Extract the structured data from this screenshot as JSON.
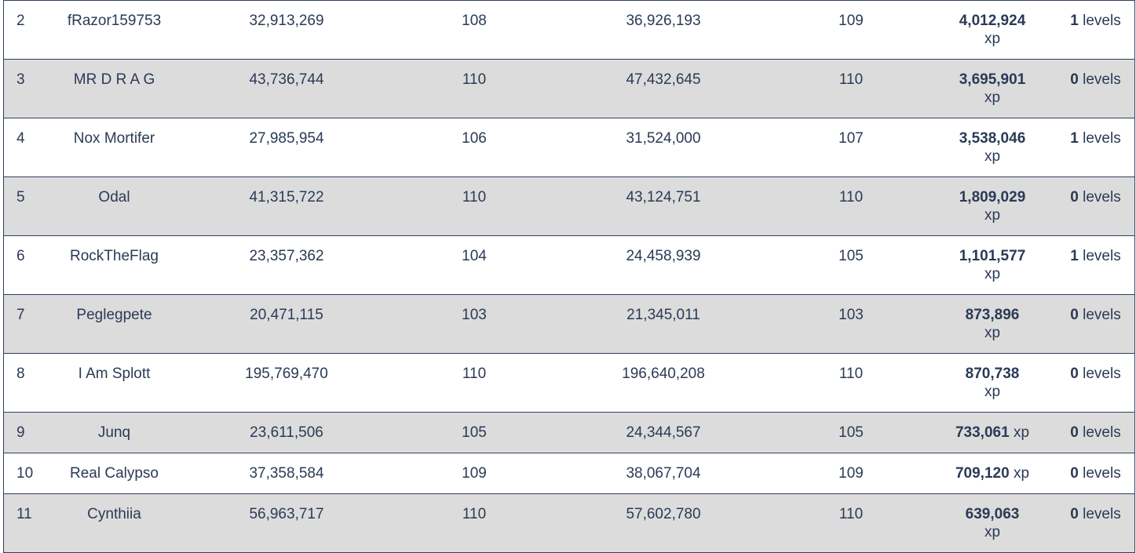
{
  "leaderboard": {
    "rows": [
      {
        "rank": "2",
        "name": "fRazor159753",
        "xp_start": "32,913,269",
        "level_start": "108",
        "xp_end": "36,926,193",
        "level_end": "109",
        "xp_gain": "4,012,924",
        "xp_unit": "xp",
        "level_gain": "1",
        "level_unit": "levels",
        "wrap": true
      },
      {
        "rank": "3",
        "name": "MR D R A G",
        "xp_start": "43,736,744",
        "level_start": "110",
        "xp_end": "47,432,645",
        "level_end": "110",
        "xp_gain": "3,695,901",
        "xp_unit": "xp",
        "level_gain": "0",
        "level_unit": "levels",
        "wrap": true
      },
      {
        "rank": "4",
        "name": "Nox Mortifer",
        "xp_start": "27,985,954",
        "level_start": "106",
        "xp_end": "31,524,000",
        "level_end": "107",
        "xp_gain": "3,538,046",
        "xp_unit": "xp",
        "level_gain": "1",
        "level_unit": "levels",
        "wrap": true
      },
      {
        "rank": "5",
        "name": "Odal",
        "xp_start": "41,315,722",
        "level_start": "110",
        "xp_end": "43,124,751",
        "level_end": "110",
        "xp_gain": "1,809,029",
        "xp_unit": "xp",
        "level_gain": "0",
        "level_unit": "levels",
        "wrap": true
      },
      {
        "rank": "6",
        "name": "RockTheFlag",
        "xp_start": "23,357,362",
        "level_start": "104",
        "xp_end": "24,458,939",
        "level_end": "105",
        "xp_gain": "1,101,577",
        "xp_unit": "xp",
        "level_gain": "1",
        "level_unit": "levels",
        "wrap": true
      },
      {
        "rank": "7",
        "name": "Peglegpete",
        "xp_start": "20,471,115",
        "level_start": "103",
        "xp_end": "21,345,011",
        "level_end": "103",
        "xp_gain": "873,896",
        "xp_unit": "xp",
        "level_gain": "0",
        "level_unit": "levels",
        "wrap": true
      },
      {
        "rank": "8",
        "name": "I Am Splott",
        "xp_start": "195,769,470",
        "level_start": "110",
        "xp_end": "196,640,208",
        "level_end": "110",
        "xp_gain": "870,738",
        "xp_unit": "xp",
        "level_gain": "0",
        "level_unit": "levels",
        "wrap": true
      },
      {
        "rank": "9",
        "name": "Junq",
        "xp_start": "23,611,506",
        "level_start": "105",
        "xp_end": "24,344,567",
        "level_end": "105",
        "xp_gain": "733,061",
        "xp_unit": "xp",
        "level_gain": "0",
        "level_unit": "levels",
        "wrap": false
      },
      {
        "rank": "10",
        "name": "Real Calypso",
        "xp_start": "37,358,584",
        "level_start": "109",
        "xp_end": "38,067,704",
        "level_end": "109",
        "xp_gain": "709,120",
        "xp_unit": "xp",
        "level_gain": "0",
        "level_unit": "levels",
        "wrap": false
      },
      {
        "rank": "11",
        "name": "Cynthiia",
        "xp_start": "56,963,717",
        "level_start": "110",
        "xp_end": "57,602,780",
        "level_end": "110",
        "xp_gain": "639,063",
        "xp_unit": "xp",
        "level_gain": "0",
        "level_unit": "levels",
        "wrap": true
      }
    ]
  }
}
